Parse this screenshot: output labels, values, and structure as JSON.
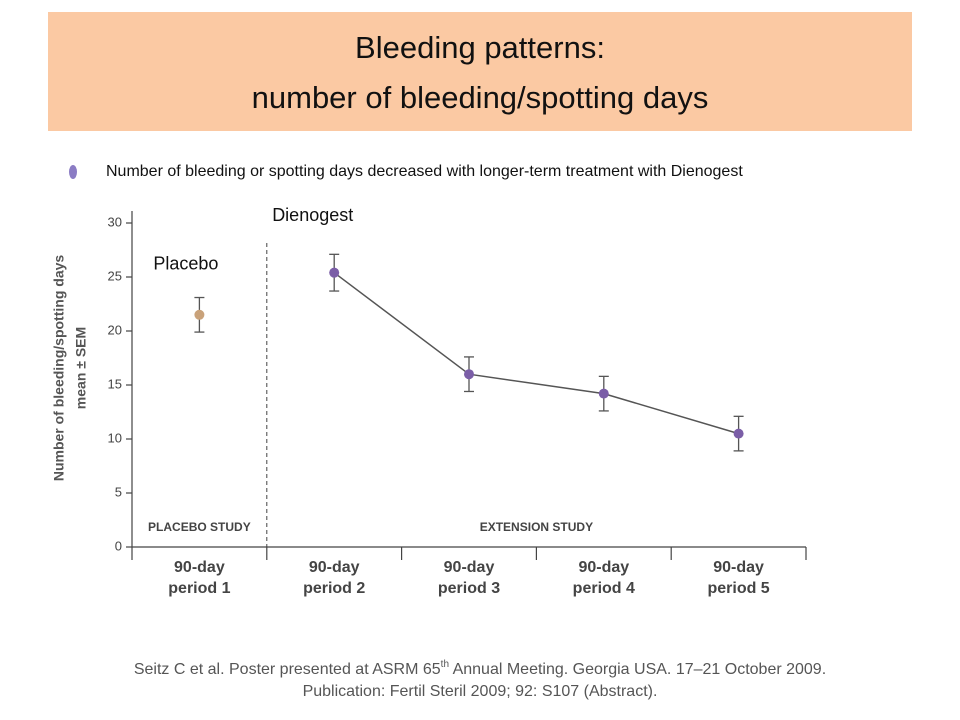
{
  "chart_data": {
    "type": "line",
    "title": [
      "Bleeding patterns:",
      "number of bleeding/spotting days"
    ],
    "bullet": "Number of bleeding or spotting days decreased with longer-term treatment with Dienogest",
    "ylabel": [
      "Number of bleeding/spotting days",
      "mean ± SEM"
    ],
    "categories": [
      "90-day period 1",
      "90-day period 2",
      "90-day period 3",
      "90-day period 4",
      "90-day period 5"
    ],
    "region_labels": [
      "PLACEBO STUDY",
      "EXTENSION STUDY"
    ],
    "series": [
      {
        "name": "Placebo",
        "color": "#c9a27a",
        "values": [
          21.5,
          null,
          null,
          null,
          null
        ],
        "errors": [
          1.6,
          null,
          null,
          null,
          null
        ]
      },
      {
        "name": "Dienogest",
        "color": "#7b5ea7",
        "values": [
          null,
          25.4,
          16.0,
          14.2,
          10.5
        ],
        "errors": [
          null,
          1.7,
          1.6,
          1.6,
          1.6
        ]
      }
    ],
    "ylim": [
      0,
      30
    ],
    "yticks": [
      0,
      5,
      10,
      15,
      20,
      25,
      30
    ],
    "footer": {
      "line1_before": "Seitz C et al. Poster presented at ASRM 65",
      "line1_sup": "th",
      "line1_after": " Annual Meeting. Georgia USA. 17–21 October 2009.",
      "line2": "Publication: Fertil Steril 2009; 92: S107 (Abstract)."
    }
  }
}
